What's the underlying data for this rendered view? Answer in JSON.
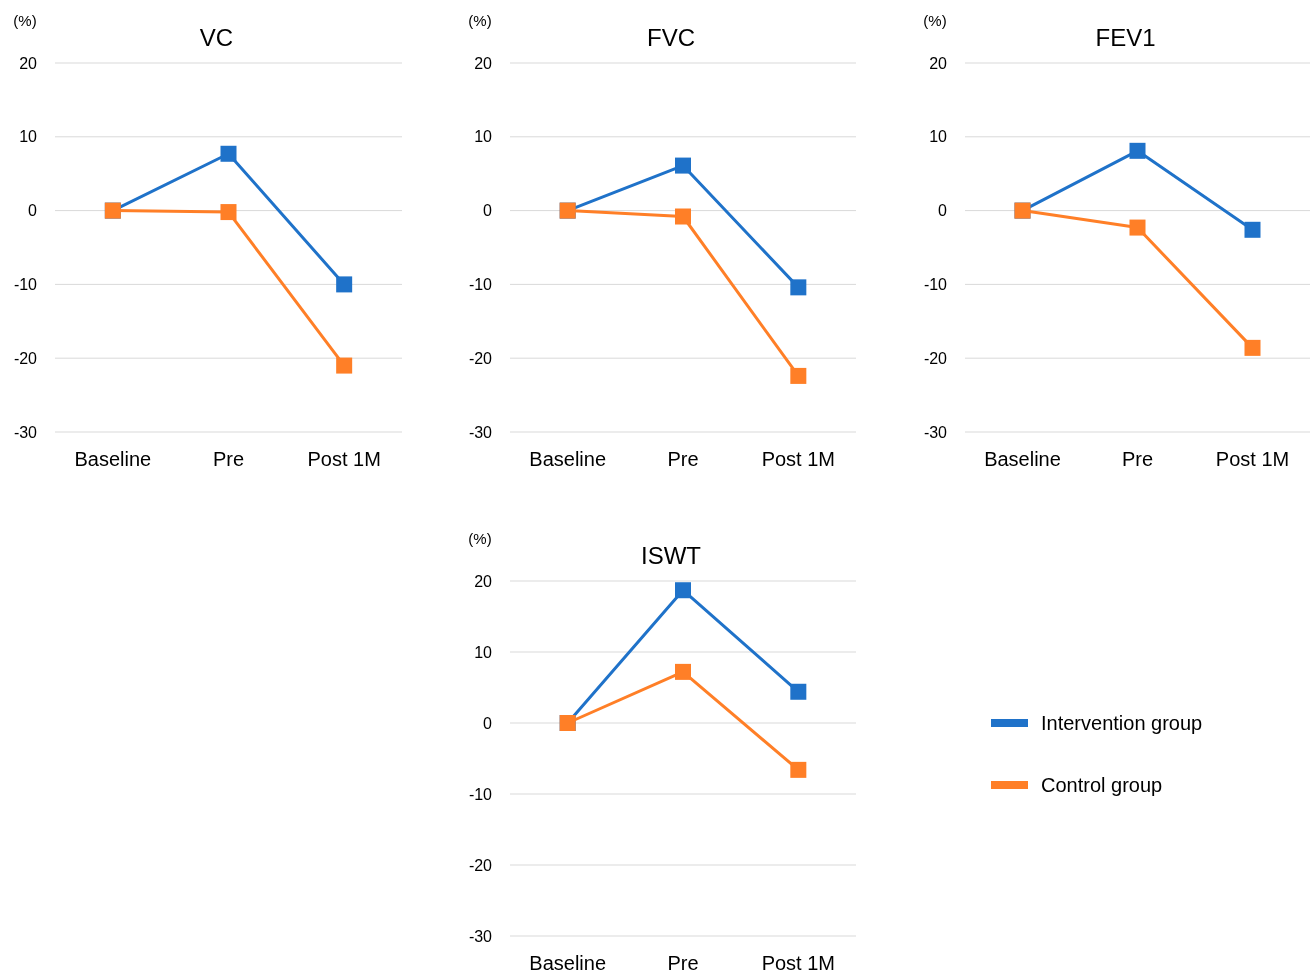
{
  "chart_data": [
    {
      "type": "line",
      "title": "VC",
      "ylabel": "(%)",
      "categories": [
        "Baseline",
        "Pre",
        "Post 1M"
      ],
      "ylim": [
        -30,
        20
      ],
      "yticks": [
        -30,
        -20,
        -10,
        0,
        10,
        20
      ],
      "grid": "y",
      "marker": "square",
      "line_style": "solid",
      "series": [
        {
          "color": "#1f72c9",
          "values": [
            0,
            7.7,
            -10
          ]
        },
        {
          "color": "#ff7f27",
          "values": [
            0,
            -0.2,
            -21
          ]
        }
      ]
    },
    {
      "type": "line",
      "title": "FVC",
      "ylabel": "(%)",
      "categories": [
        "Baseline",
        "Pre",
        "Post 1M"
      ],
      "ylim": [
        -30,
        20
      ],
      "yticks": [
        -30,
        -20,
        -10,
        0,
        10,
        20
      ],
      "grid": "y",
      "marker": "square",
      "line_style": "solid",
      "series": [
        {
          "color": "#1f72c9",
          "values": [
            0,
            6.1,
            -10.4
          ]
        },
        {
          "color": "#ff7f27",
          "values": [
            0,
            -0.8,
            -22.4
          ]
        }
      ]
    },
    {
      "type": "line",
      "title": "FEV1",
      "ylabel": "(%)",
      "categories": [
        "Baseline",
        "Pre",
        "Post 1M"
      ],
      "ylim": [
        -30,
        20
      ],
      "yticks": [
        -30,
        -20,
        -10,
        0,
        10,
        20
      ],
      "grid": "y",
      "marker": "square",
      "line_style": "solid",
      "series": [
        {
          "color": "#1f72c9",
          "values": [
            0,
            8.1,
            -2.6
          ]
        },
        {
          "color": "#ff7f27",
          "values": [
            0,
            -2.3,
            -18.6
          ]
        }
      ]
    },
    {
      "type": "line",
      "title": "ISWT",
      "ylabel": "(%)",
      "categories": [
        "Baseline",
        "Pre",
        "Post 1M"
      ],
      "ylim": [
        -30,
        20
      ],
      "yticks": [
        -30,
        -20,
        -10,
        0,
        10,
        20
      ],
      "grid": "y",
      "marker": "square",
      "line_style": "solid",
      "legend": "right",
      "series": [
        {
          "name": "Intervention  group",
          "color": "#1f72c9",
          "values": [
            0,
            18.7,
            4.4
          ]
        },
        {
          "name": "Control group",
          "color": "#ff7f27",
          "values": [
            0,
            7.2,
            -6.6
          ]
        }
      ]
    }
  ]
}
